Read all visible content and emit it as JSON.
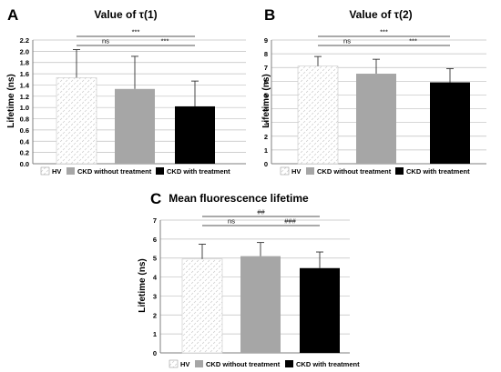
{
  "chart_data": [
    {
      "type": "bar",
      "panel_label": "A",
      "title": "Value of τ(1)",
      "ylabel": "Lifetime (ns)",
      "ylim": [
        0,
        2.2
      ],
      "ytick_step": 0.2,
      "ytick_decimals": 1,
      "categories": [
        "HV",
        "CKD without treatment",
        "CKD with treatment"
      ],
      "values": [
        1.53,
        1.33,
        1.02
      ],
      "errors": [
        0.5,
        0.58,
        0.45
      ],
      "significance": [
        {
          "from": 0,
          "to": 1,
          "label": "ns"
        },
        {
          "from": 1,
          "to": 2,
          "label": "***"
        },
        {
          "from": 0,
          "to": 2,
          "label": "***"
        }
      ],
      "legend_placement": "bottom"
    },
    {
      "type": "bar",
      "panel_label": "B",
      "title": "Value of τ(2)",
      "ylabel": "Lifetime (ns)",
      "ylim": [
        0,
        9
      ],
      "ytick_step": 1,
      "ytick_decimals": 0,
      "categories": [
        "HV",
        "CKD without treatment",
        "CKD with treatment"
      ],
      "values": [
        7.1,
        6.55,
        5.92
      ],
      "errors": [
        0.7,
        1.05,
        1.0
      ],
      "significance": [
        {
          "from": 0,
          "to": 1,
          "label": "ns"
        },
        {
          "from": 1,
          "to": 2,
          "label": "***"
        },
        {
          "from": 0,
          "to": 2,
          "label": "***"
        }
      ],
      "legend_placement": "bottom"
    },
    {
      "type": "bar",
      "panel_label": "C",
      "title": "Mean fluorescence lifetime",
      "ylabel": "Lifetime (ns)",
      "ylim": [
        0,
        7
      ],
      "ytick_step": 1,
      "ytick_decimals": 0,
      "categories": [
        "HV",
        "CKD without treatment",
        "CKD with treatment"
      ],
      "values": [
        4.95,
        5.1,
        4.47
      ],
      "errors": [
        0.78,
        0.72,
        0.85
      ],
      "significance": [
        {
          "from": 0,
          "to": 1,
          "label": "ns"
        },
        {
          "from": 1,
          "to": 2,
          "label": "###"
        },
        {
          "from": 0,
          "to": 2,
          "label": "##"
        }
      ],
      "legend_placement": "bottom"
    }
  ],
  "colors": {
    "hv_fill": "#ffffff",
    "hv_pattern": "#cfcfcf",
    "ckd_without_treatment": "#a6a6a6",
    "ckd_with_treatment": "#000000",
    "grid": "#bfbfbf",
    "axis": "#7f7f7f",
    "text": "#000000"
  }
}
